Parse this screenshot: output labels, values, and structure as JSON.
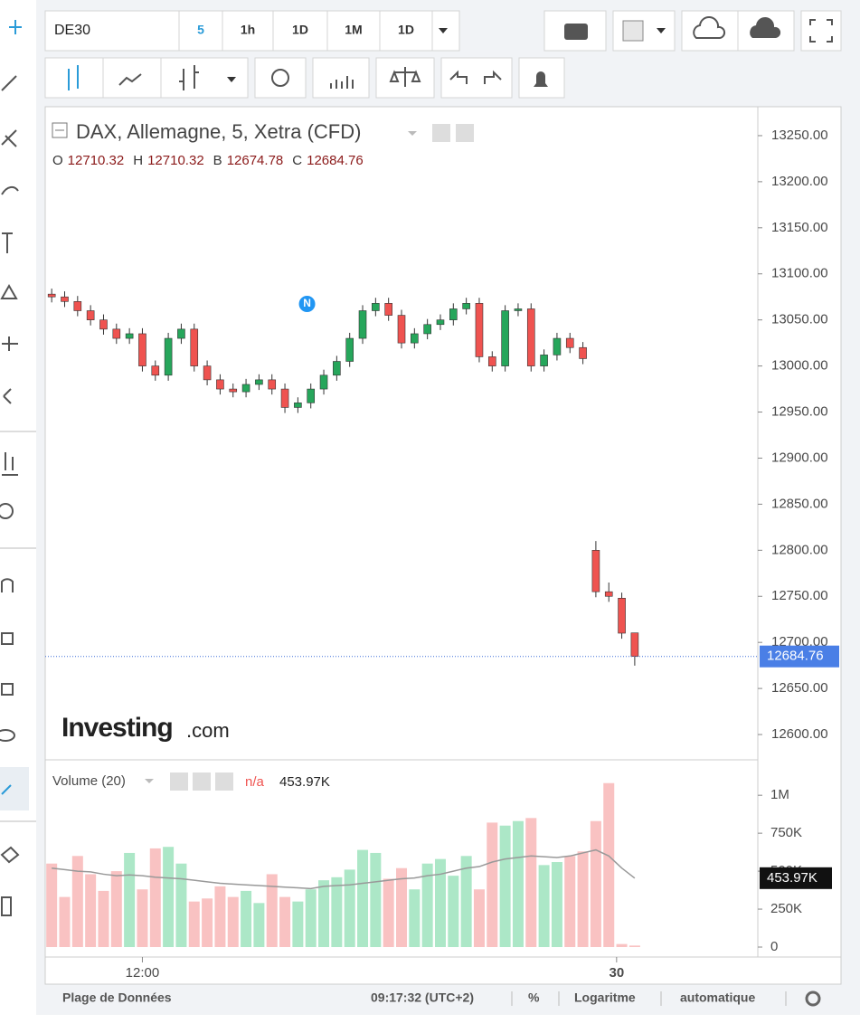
{
  "toolbar": {
    "symbol": "DE30",
    "intervals": [
      "5",
      "1h",
      "1D",
      "1M",
      "1D"
    ]
  },
  "chart_data": {
    "type": "candlestick",
    "title": "DAX, Allemagne, 5, Xetra (CFD)",
    "legend_labels": [
      "O",
      "H",
      "B",
      "C"
    ],
    "open": [
      13078,
      13075,
      13070,
      13060,
      13050,
      13040,
      13030,
      13035,
      13000,
      12990,
      13030,
      13040,
      13000,
      12985,
      12975,
      12972,
      12980,
      12985,
      12975,
      12955,
      12960,
      12975,
      12990,
      13005,
      13030,
      13060,
      13068,
      13055,
      13025,
      13035,
      13045,
      13050,
      13062,
      13068,
      13010,
      13000,
      13060,
      13062,
      13000,
      13012,
      13030,
      13020,
      12800,
      12755,
      12748,
      12710.32
    ],
    "high": [
      13084,
      13081,
      13076,
      13066,
      13056,
      13046,
      13041,
      13041,
      13006,
      13036,
      13046,
      13046,
      13006,
      12991,
      12981,
      12986,
      12991,
      12991,
      12981,
      12966,
      12981,
      12996,
      13011,
      13036,
      13066,
      13074,
      13074,
      13061,
      13041,
      13051,
      13056,
      13068,
      13074,
      13074,
      13016,
      13066,
      13068,
      13068,
      13018,
      13036,
      13036,
      13026,
      12810,
      12765,
      12754,
      12710.32
    ],
    "low": [
      13069,
      13064,
      13054,
      13044,
      13034,
      13024,
      13024,
      12994,
      12984,
      12984,
      13024,
      12994,
      12979,
      12969,
      12966,
      12966,
      12974,
      12969,
      12949,
      12949,
      12954,
      12969,
      12984,
      12999,
      13024,
      13054,
      13049,
      13019,
      13019,
      13029,
      13039,
      13044,
      13056,
      13004,
      12994,
      12994,
      13054,
      12994,
      12994,
      13006,
      13014,
      13002,
      12749,
      12744,
      12704,
      12674.78
    ],
    "close": [
      13075,
      13070,
      13060,
      13050,
      13040,
      13030,
      13035,
      13000,
      12990,
      13030,
      13040,
      13000,
      12985,
      12975,
      12972,
      12980,
      12985,
      12975,
      12955,
      12960,
      12975,
      12990,
      13005,
      13030,
      13060,
      13068,
      13055,
      13025,
      13035,
      13045,
      13050,
      13062,
      13068,
      13010,
      13000,
      13060,
      13062,
      13000,
      13012,
      13030,
      13020,
      13008,
      12755,
      12750,
      12710,
      12684.76
    ],
    "up_color": "#26a65b",
    "down_color": "#ef5350",
    "ylim": [
      12570,
      13280
    ],
    "yticks": [
      {
        "value": 12600,
        "label": "12600.00"
      },
      {
        "value": 12650,
        "label": "12650.00"
      },
      {
        "value": 12700,
        "label": "12700.00"
      },
      {
        "value": 12750,
        "label": "12750.00"
      },
      {
        "value": 12800,
        "label": "12800.00"
      },
      {
        "value": 12850,
        "label": "12850.00"
      },
      {
        "value": 12900,
        "label": "12900.00"
      },
      {
        "value": 12950,
        "label": "12950.00"
      },
      {
        "value": 13000,
        "label": "13000.00"
      },
      {
        "value": 13050,
        "label": "13050.00"
      },
      {
        "value": 13100,
        "label": "13100.00"
      },
      {
        "value": 13150,
        "label": "13150.00"
      },
      {
        "value": 13200,
        "label": "13200.00"
      },
      {
        "value": 13250,
        "label": "13250.00"
      }
    ],
    "xlim": [
      -0.5,
      54.5
    ],
    "xticks": [
      {
        "value": 7,
        "label": "12:00"
      },
      {
        "value": 43.6,
        "label": "30"
      }
    ],
    "marker": {
      "index": 19.5,
      "label": "N"
    },
    "volume": {
      "title": "Volume (20)",
      "na": "n/a",
      "ma_last_label": "453.97K",
      "values": [
        550000,
        330000,
        600000,
        480000,
        370000,
        500000,
        620000,
        380000,
        650000,
        660000,
        550000,
        300000,
        320000,
        400000,
        330000,
        370000,
        290000,
        480000,
        330000,
        300000,
        380000,
        440000,
        460000,
        510000,
        640000,
        620000,
        450000,
        520000,
        380000,
        550000,
        580000,
        470000,
        600000,
        380000,
        820000,
        800000,
        830000,
        850000,
        540000,
        560000,
        600000,
        630000,
        830000,
        1080000,
        20000,
        10000
      ],
      "ma_values": [
        520000,
        510000,
        500000,
        495000,
        480000,
        470000,
        475000,
        470000,
        460000,
        455000,
        450000,
        440000,
        430000,
        420000,
        415000,
        410000,
        405000,
        400000,
        395000,
        390000,
        385000,
        400000,
        405000,
        410000,
        420000,
        430000,
        440000,
        450000,
        455000,
        470000,
        480000,
        500000,
        520000,
        530000,
        560000,
        580000,
        590000,
        600000,
        595000,
        590000,
        600000,
        620000,
        640000,
        600000,
        520000,
        453970
      ],
      "ma_color": "#999999",
      "ylim": [
        0,
        1150000
      ],
      "yticks": [
        0,
        {
          "value": 250000,
          "label": "250K"
        },
        {
          "value": 500000,
          "label": "500K"
        },
        {
          "value": 750000,
          "label": "750K"
        },
        {
          "value": 1000000,
          "label": "1M"
        }
      ]
    }
  },
  "logo": {
    "brand": "Investing",
    "suffix": ".com"
  },
  "statusbar": {
    "range": "Plage de Données",
    "time": "09:17:32 (UTC+2)",
    "percent": "%",
    "log": "Logaritme",
    "auto": "automatique"
  }
}
